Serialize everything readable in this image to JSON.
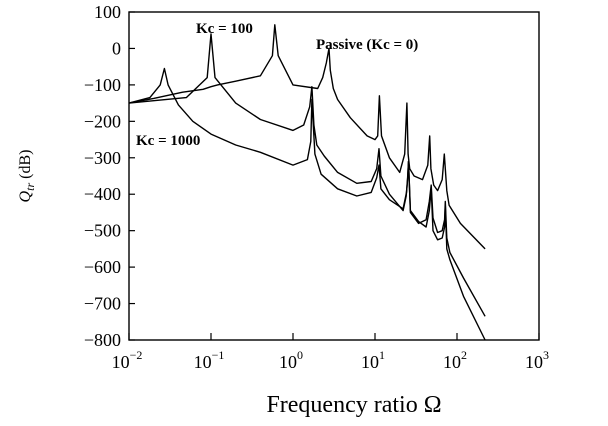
{
  "chart_data": {
    "type": "line",
    "xscale": "log",
    "xlim": [
      0.01,
      1000
    ],
    "ylim": [
      -800,
      100
    ],
    "xlabel": "Frequency  ratio  Ω",
    "ylabel": {
      "symbol": "Q",
      "subscript": "tr",
      "unit": " (dB)"
    },
    "yticks": [
      100,
      0,
      -100,
      -200,
      -300,
      -400,
      -500,
      -600,
      -700,
      -800
    ],
    "xticks": [
      {
        "base": "10",
        "exp": "−2"
      },
      {
        "base": "10",
        "exp": "−1"
      },
      {
        "base": "10",
        "exp": "0"
      },
      {
        "base": "10",
        "exp": "1"
      },
      {
        "base": "10",
        "exp": "2"
      },
      {
        "base": "10",
        "exp": "3"
      }
    ],
    "annotations": [
      "Kc = 100",
      "Passive (Kc = 0)",
      "Kc = 1000"
    ],
    "grid": false,
    "series": [
      {
        "x": [
          0.01,
          0.02,
          0.045,
          0.08,
          0.1,
          0.12,
          0.2,
          0.4,
          0.56,
          0.6,
          0.66,
          1.0,
          2.0,
          2.3,
          2.55,
          2.75,
          2.85,
          3.1,
          3.5,
          5,
          8,
          10,
          10.8,
          11.3,
          12,
          15,
          20,
          23,
          24.5,
          25.3,
          26.5,
          30,
          38,
          44,
          46.5,
          48,
          52,
          58,
          66,
          70,
          72,
          75,
          80,
          110,
          220
        ],
        "y": [
          -150,
          -137,
          -120,
          -112,
          -105,
          -100,
          -90,
          -75,
          -20,
          65,
          -20,
          -100,
          -110,
          -80,
          -40,
          0,
          -60,
          -110,
          -140,
          -190,
          -240,
          -250,
          -240,
          -130,
          -240,
          -300,
          -340,
          -290,
          -150,
          -290,
          -330,
          -350,
          -360,
          -320,
          -240,
          -330,
          -375,
          -390,
          -360,
          -290,
          -330,
          -390,
          -430,
          -480,
          -550
        ]
      },
      {
        "x": [
          0.01,
          0.05,
          0.09,
          0.1,
          0.112,
          0.2,
          0.4,
          1.0,
          1.35,
          1.6,
          1.7,
          1.8,
          1.95,
          2.4,
          3.5,
          6,
          9,
          10.5,
          11.2,
          11.8,
          15,
          22,
          24,
          25,
          25.6,
          27,
          34,
          42,
          46,
          48.5,
          51,
          58,
          66,
          70.5,
          72,
          75,
          82,
          120,
          220
        ],
        "y": [
          -150,
          -135,
          -80,
          40,
          -80,
          -150,
          -195,
          -225,
          -210,
          -160,
          -105,
          -210,
          -265,
          -295,
          -340,
          -370,
          -365,
          -330,
          -275,
          -350,
          -400,
          -445,
          -405,
          -355,
          -310,
          -450,
          -480,
          -470,
          -420,
          -375,
          -465,
          -505,
          -500,
          -470,
          -420,
          -520,
          -560,
          -630,
          -735
        ]
      },
      {
        "x": [
          0.01,
          0.018,
          0.024,
          0.027,
          0.03,
          0.04,
          0.06,
          0.1,
          0.2,
          0.4,
          1.0,
          1.5,
          1.65,
          1.7,
          1.85,
          2.2,
          3.5,
          6,
          9,
          10.5,
          11.2,
          11.8,
          15,
          22,
          24.2,
          25,
          25.6,
          27,
          34,
          42,
          46,
          48.5,
          51,
          58,
          66,
          70.5,
          72,
          75,
          82,
          120,
          220
        ],
        "y": [
          -150,
          -135,
          -100,
          -55,
          -100,
          -155,
          -200,
          -235,
          -265,
          -285,
          -320,
          -305,
          -255,
          -140,
          -290,
          -345,
          -385,
          -405,
          -395,
          -355,
          -320,
          -385,
          -415,
          -440,
          -395,
          -360,
          -310,
          -445,
          -475,
          -490,
          -445,
          -385,
          -500,
          -525,
          -520,
          -490,
          -430,
          -550,
          -580,
          -680,
          -800
        ]
      }
    ]
  }
}
